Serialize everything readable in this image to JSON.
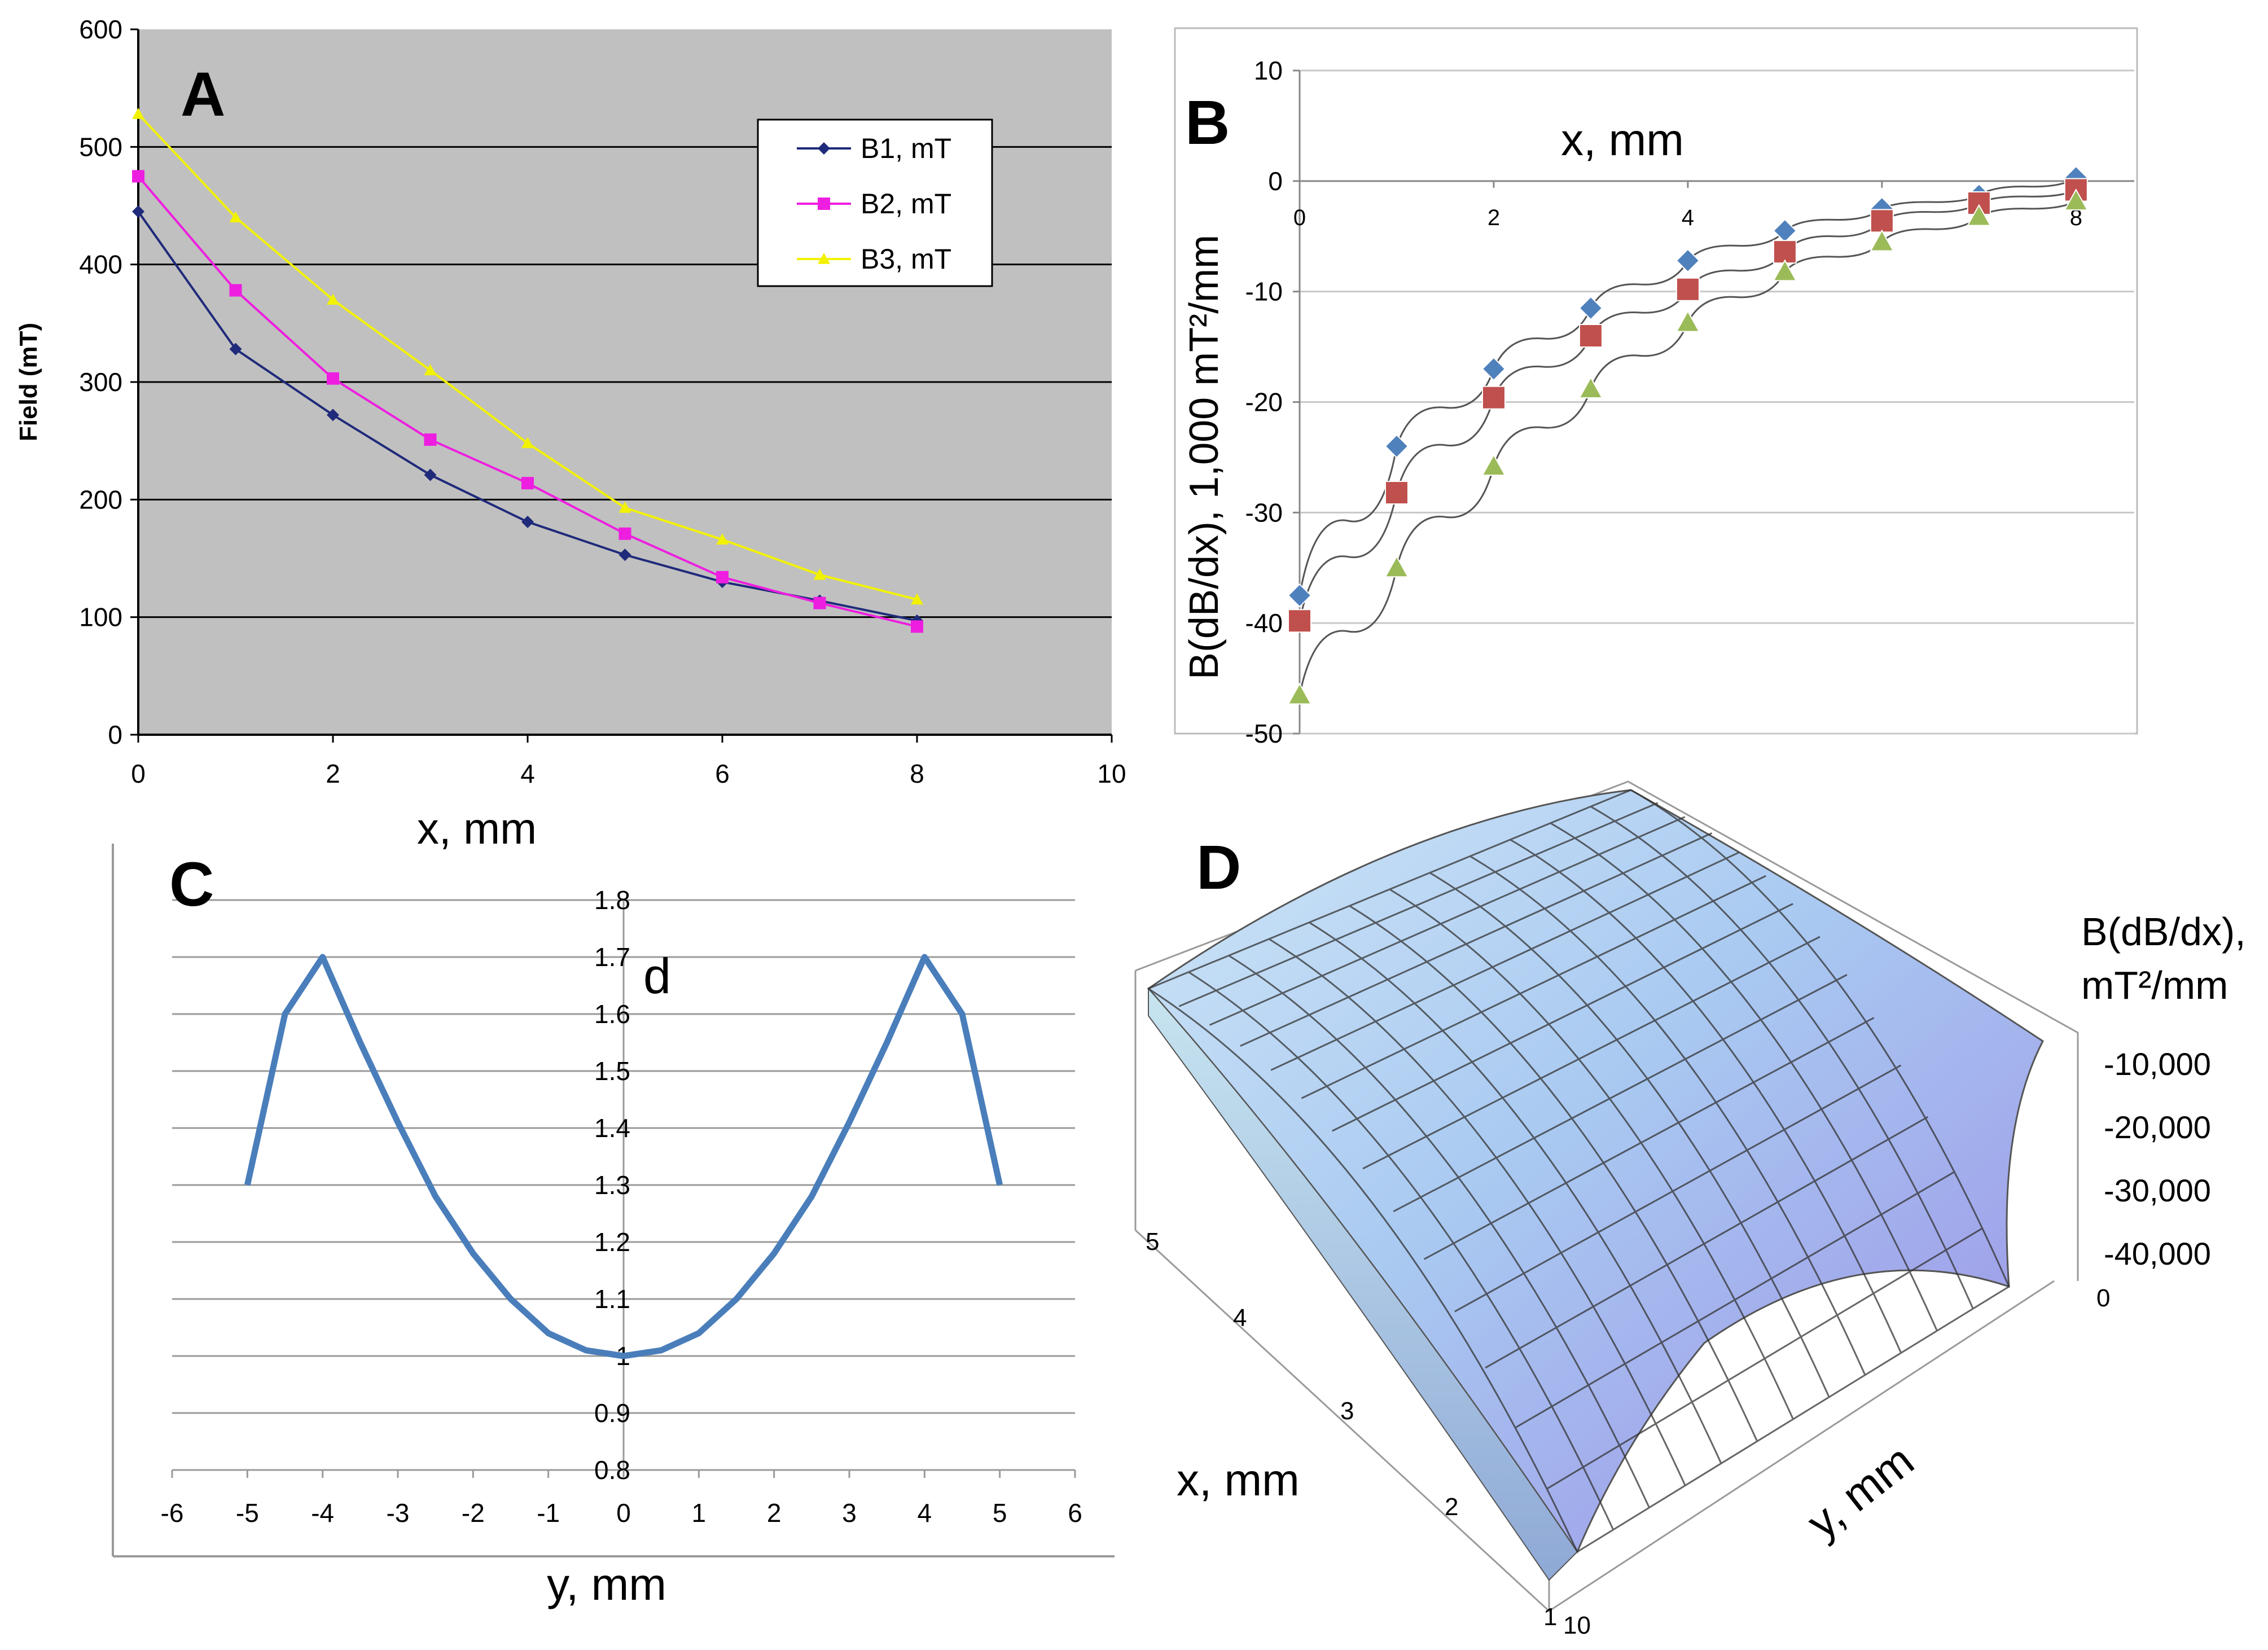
{
  "chart_data": [
    {
      "id": "A",
      "panel_label": "A",
      "type": "line",
      "xlabel": "x, mm",
      "ylabel": "Field (mT)",
      "xlim": [
        0,
        10
      ],
      "ylim": [
        0,
        600
      ],
      "xticks": [
        0,
        2,
        4,
        6,
        8,
        10
      ],
      "yticks": [
        0,
        100,
        200,
        300,
        400,
        500,
        600
      ],
      "legend_position": "top-right",
      "x": [
        0,
        1,
        2,
        3,
        4,
        5,
        6,
        7,
        8
      ],
      "series": [
        {
          "name": "B1, mT",
          "color": "#1f2a7a",
          "marker": "diamond",
          "values": [
            445,
            328,
            272,
            221,
            181,
            153,
            130,
            114,
            97
          ]
        },
        {
          "name": "B2, mT",
          "color": "#ee1ee0",
          "marker": "square",
          "values": [
            475,
            378,
            303,
            251,
            214,
            171,
            134,
            112,
            92
          ]
        },
        {
          "name": "B3, mT",
          "color": "#f2f200",
          "marker": "triangle",
          "values": [
            528,
            440,
            370,
            310,
            248,
            193,
            166,
            136,
            115
          ]
        }
      ]
    },
    {
      "id": "B",
      "panel_label": "B",
      "type": "scatter",
      "xlabel": "x, mm",
      "ylabel": "B(dB/dx), 1,000 mT²/mm",
      "xlim": [
        0,
        8.6
      ],
      "ylim": [
        -50,
        10
      ],
      "xticks": [
        0,
        2,
        4,
        6,
        8
      ],
      "yticks": [
        10,
        0,
        -10,
        -20,
        -30,
        -40,
        -50
      ],
      "x": [
        0,
        1,
        2,
        3,
        4,
        5,
        6,
        7,
        8
      ],
      "series": [
        {
          "name": "B1",
          "color": "#4f81bd",
          "marker": "diamond",
          "values": [
            -37.5,
            -24,
            -17,
            -11.5,
            -7.2,
            -4.5,
            -2.5,
            -1.3,
            0.3
          ]
        },
        {
          "name": "B2",
          "color": "#c0504d",
          "marker": "square",
          "values": [
            -39.8,
            -28.2,
            -19.6,
            -14,
            -9.8,
            -6.4,
            -3.6,
            -2,
            -0.8
          ]
        },
        {
          "name": "B3",
          "color": "#9bbb59",
          "marker": "triangle",
          "values": [
            -46.5,
            -35,
            -25.8,
            -18.8,
            -12.8,
            -8.2,
            -5.5,
            -3.2,
            -1.8
          ]
        }
      ]
    },
    {
      "id": "C",
      "panel_label": "C",
      "type": "line",
      "xlabel": "y, mm",
      "ylabel": "",
      "annotation": "d",
      "xlim": [
        -6,
        6
      ],
      "ylim": [
        0.8,
        1.8
      ],
      "xticks": [
        -6,
        -5,
        -4,
        -3,
        -2,
        -1,
        0,
        1,
        2,
        3,
        4,
        5,
        6
      ],
      "yticks": [
        "0.8",
        "0.9",
        "1",
        "1.1",
        "1.2",
        "1.3",
        "1.4",
        "1.5",
        "1.6",
        "1.7",
        "1.8"
      ],
      "color": "#4a7ebb",
      "x": [
        -5,
        -4.5,
        -4,
        -3.5,
        -3,
        -2.5,
        -2,
        -1.5,
        -1,
        -0.5,
        0,
        0.5,
        1,
        1.5,
        2,
        2.5,
        3,
        3.5,
        4,
        4.5,
        5
      ],
      "values": [
        1.3,
        1.6,
        1.7,
        1.55,
        1.41,
        1.28,
        1.18,
        1.1,
        1.04,
        1.01,
        1.0,
        1.01,
        1.04,
        1.1,
        1.18,
        1.28,
        1.41,
        1.55,
        1.7,
        1.6,
        1.3
      ]
    },
    {
      "id": "D",
      "panel_label": "D",
      "type": "surface",
      "xlabel": "x, mm",
      "ylabel": "y, mm",
      "zlabel_line1": "B(dB/dx),",
      "zlabel_line2": "mT²/mm",
      "zticks": [
        "-10,000",
        "-20,000",
        "-30,000",
        "-40,000"
      ],
      "x_ticks": [
        "1",
        "2",
        "3",
        "4",
        "5"
      ],
      "y_ticks": [
        "0",
        "10"
      ]
    }
  ]
}
